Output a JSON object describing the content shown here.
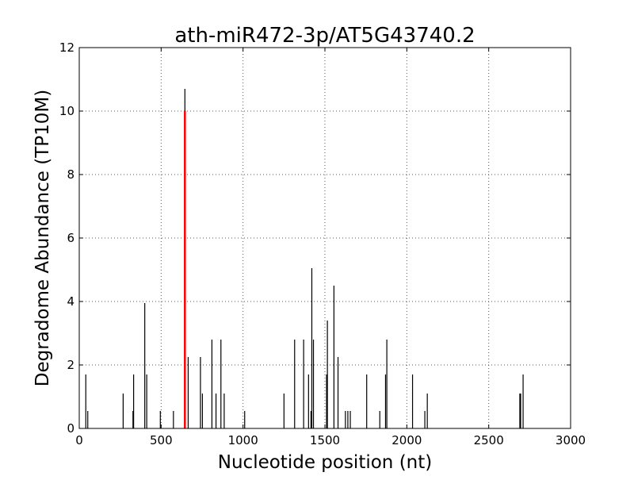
{
  "chart_data": {
    "type": "bar",
    "title": "ath-miR472-3p/AT5G43740.2",
    "xlabel": "Nucleotide position (nt)",
    "ylabel": "Degradome Abundance (TP10M)",
    "xlim": [
      0,
      3000
    ],
    "ylim": [
      0,
      12
    ],
    "xticks": [
      0,
      500,
      1000,
      1500,
      2000,
      2500,
      3000
    ],
    "yticks": [
      0,
      2,
      4,
      6,
      8,
      10,
      12
    ],
    "grid": true,
    "colors": {
      "series": "#000000",
      "highlight": "#ff0000",
      "grid": "#555555"
    },
    "series": [
      {
        "values": [
          [
            40,
            1.7
          ],
          [
            52,
            0.55
          ],
          [
            268,
            1.1
          ],
          [
            328,
            0.55
          ],
          [
            332,
            1.7
          ],
          [
            400,
            3.95
          ],
          [
            412,
            1.7
          ],
          [
            495,
            0.55
          ],
          [
            575,
            0.55
          ],
          [
            645,
            10.7
          ],
          [
            665,
            2.25
          ],
          [
            740,
            2.25
          ],
          [
            752,
            1.1
          ],
          [
            810,
            2.8
          ],
          [
            835,
            1.1
          ],
          [
            865,
            2.8
          ],
          [
            885,
            1.1
          ],
          [
            1010,
            0.55
          ],
          [
            1250,
            1.1
          ],
          [
            1315,
            2.8
          ],
          [
            1370,
            2.8
          ],
          [
            1400,
            1.7
          ],
          [
            1415,
            0.55
          ],
          [
            1420,
            5.05
          ],
          [
            1430,
            2.8
          ],
          [
            1510,
            1.7
          ],
          [
            1515,
            3.4
          ],
          [
            1555,
            4.5
          ],
          [
            1580,
            2.25
          ],
          [
            1625,
            0.55
          ],
          [
            1640,
            0.55
          ],
          [
            1655,
            0.55
          ],
          [
            1755,
            1.7
          ],
          [
            1835,
            0.55
          ],
          [
            1870,
            1.7
          ],
          [
            1878,
            2.8
          ],
          [
            2035,
            1.7
          ],
          [
            2110,
            0.55
          ],
          [
            2125,
            1.1
          ],
          [
            2690,
            1.1
          ],
          [
            2695,
            1.1
          ],
          [
            2710,
            1.7
          ]
        ]
      },
      {
        "values": [
          [
            645,
            10.0
          ]
        ]
      }
    ]
  }
}
